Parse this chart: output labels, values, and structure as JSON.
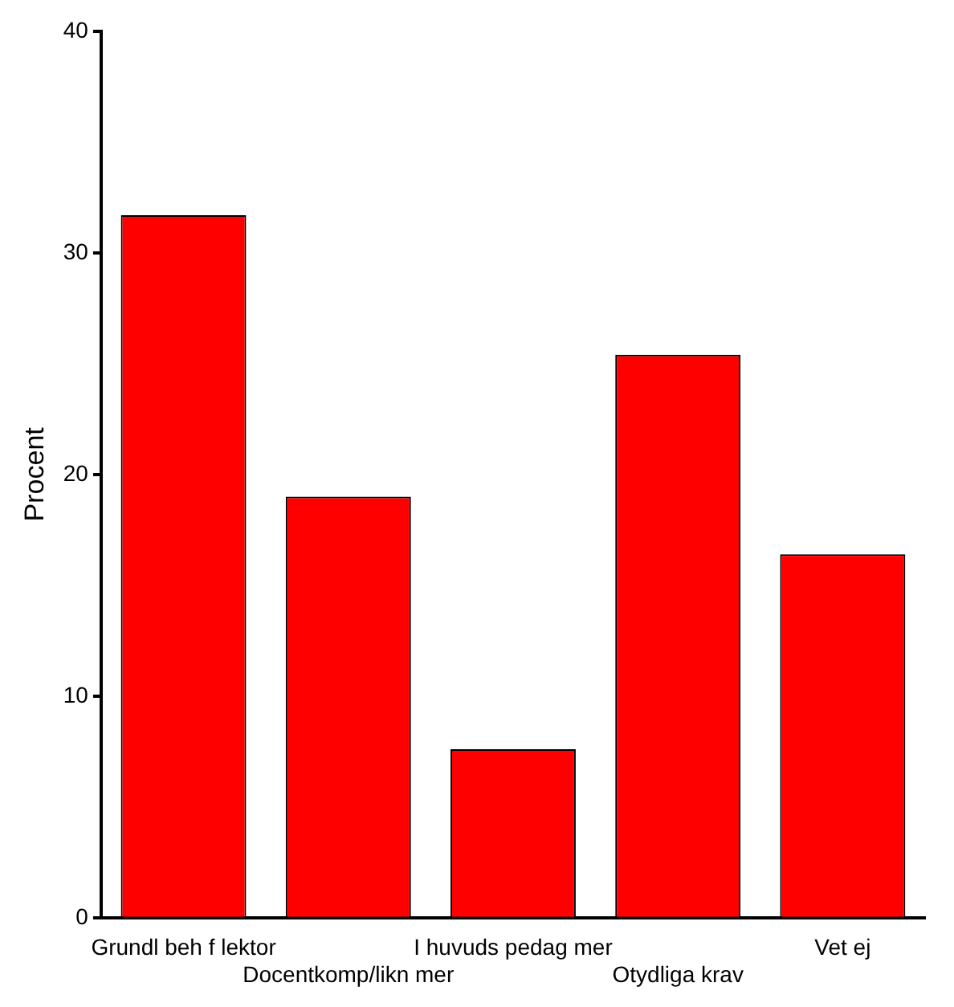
{
  "chart_data": {
    "type": "bar",
    "ylabel": "Procent",
    "categories": [
      "Grundl beh f lektor",
      "Docentkomp/likn mer",
      "I huvuds pedag mer",
      "Otydliga krav",
      "Vet ej"
    ],
    "values": [
      31.7,
      19.0,
      7.6,
      25.4,
      16.4
    ],
    "color": "#ff0000",
    "ylim": [
      0,
      40
    ],
    "yticks": [
      0,
      10,
      20,
      30,
      40
    ],
    "grid": false,
    "legend": false
  }
}
